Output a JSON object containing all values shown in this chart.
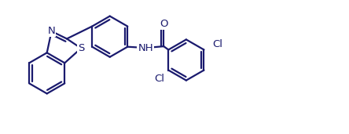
{
  "bg_color": "#ffffff",
  "bond_color": "#1a1a6e",
  "bond_lw": 1.6,
  "label_color": "#1a1a6e",
  "label_fontsize": 9.5,
  "figsize": [
    4.44,
    1.71
  ],
  "dpi": 100,
  "xlim": [
    0.0,
    4.5
  ],
  "ylim": [
    0.05,
    1.75
  ]
}
